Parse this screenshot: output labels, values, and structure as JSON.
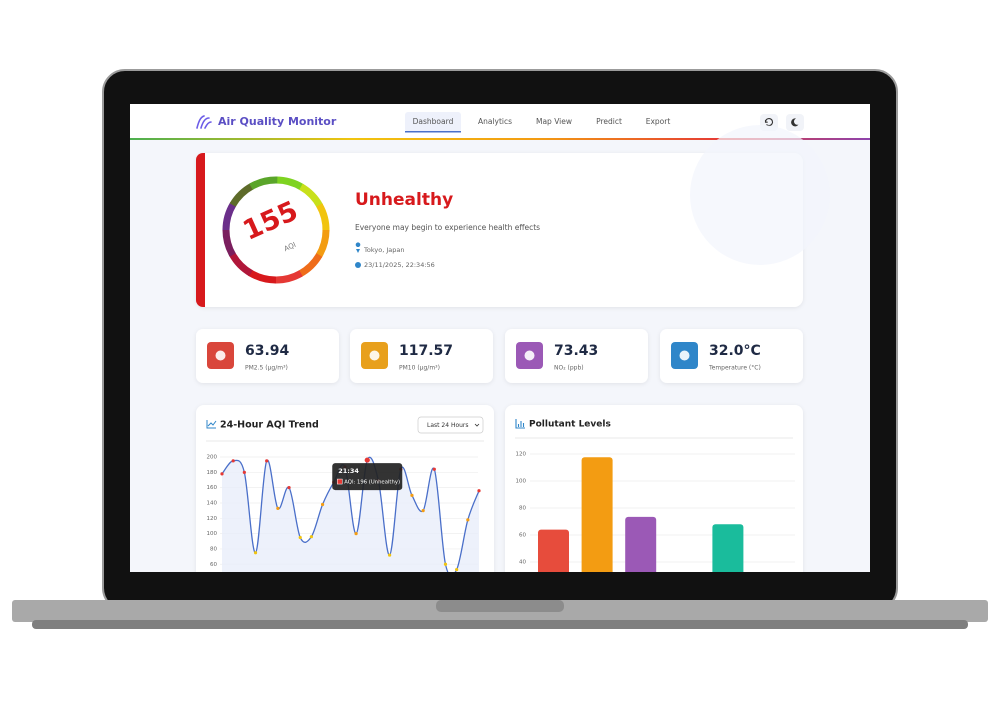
{
  "header": {
    "title": "Air Quality Monitor",
    "nav": [
      "Dashboard",
      "Analytics",
      "Map View",
      "Predict",
      "Export"
    ],
    "active_nav": 0
  },
  "hero": {
    "aqi": "155",
    "aqi_label": "AQI",
    "category": "Unhealthy",
    "description": "Everyone may begin to experience health effects",
    "location": "Tokyo, Japan",
    "timestamp": "23/11/2025, 22:34:56"
  },
  "stats": [
    {
      "value": "63.94",
      "label": "PM2.5 (µg/m³)"
    },
    {
      "value": "117.57",
      "label": "PM10 (µg/m³)"
    },
    {
      "value": "73.43",
      "label": "NO₂ (ppb)"
    },
    {
      "value": "32.0°C",
      "label": "Temperature (°C)"
    }
  ],
  "trend_chart": {
    "type": "line",
    "title": "24-Hour AQI Trend",
    "range_select": "Last 24 Hours",
    "values": [
      178,
      195,
      180,
      75,
      195,
      133,
      160,
      95,
      96,
      138,
      167,
      187,
      100,
      196,
      169,
      72,
      184,
      150,
      130,
      184,
      60,
      53,
      118,
      156
    ],
    "point_colors": [
      "#e53935",
      "#e53935",
      "#e53935",
      "#f1c40f",
      "#e53935",
      "#f39c12",
      "#e53935",
      "#f1c40f",
      "#f1c40f",
      "#f39c12",
      "#e53935",
      "#e53935",
      "#f39c12",
      "#e53935",
      "#e53935",
      "#f1c40f",
      "#e53935",
      "#f39c12",
      "#f39c12",
      "#e53935",
      "#f1c40f",
      "#f1c40f",
      "#f39c12",
      "#e53935"
    ],
    "line_color": "#4a6fc9",
    "ylim": [
      40,
      200
    ],
    "yticks": [
      60,
      80,
      100,
      120,
      140,
      160,
      180,
      200
    ],
    "grid": true,
    "tooltip": {
      "index": 13,
      "time": "21:34",
      "text": "AQI: 196 (Unhealthy)"
    }
  },
  "pollutant_chart": {
    "type": "bar",
    "title": "Pollutant Levels",
    "values": [
      63.94,
      117.57,
      73.43,
      null,
      68
    ],
    "colors": [
      "#e74c3c",
      "#f39c12",
      "#9b59b6",
      "#cccccc",
      "#1abc9c"
    ],
    "ylim": [
      20,
      120
    ],
    "yticks": [
      40,
      60,
      80,
      100,
      120
    ],
    "grid": true
  }
}
